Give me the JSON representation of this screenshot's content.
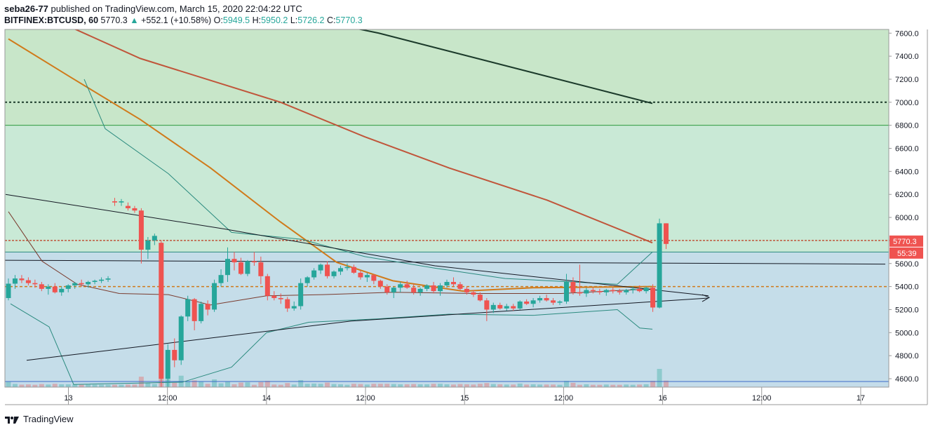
{
  "header": {
    "author": "seba26-77",
    "published": "published on TradingView.com, March 15, 2020 22:04:22 UTC",
    "symbol": "BITFINEX:BTCUSD, 60",
    "last": "5770.3",
    "change_arrow": "▲",
    "change": "+552.1 (+10.58%)",
    "o_label": "O:",
    "o_value": "5949.5",
    "h_label": "H:",
    "h_value": "5950.2",
    "l_label": "L:",
    "l_value": "5726.2",
    "c_label": "C:",
    "c_value": "5770.3"
  },
  "price_tag": "5770.3",
  "countdown_tag": "55:39",
  "brand": "TradingView",
  "colors": {
    "up": "#26a69a",
    "down": "#ef5350",
    "price_tag": "#ef5350",
    "zone_green": "#c8e6c9",
    "zone_blue": "#c5dde9",
    "sma_long": "#1b3a2a",
    "ema_red": "#c0553a",
    "ema_orange": "#d07a1a",
    "bb": "#2a8a7e"
  },
  "chart_data": {
    "type": "candlestick",
    "y_ticks": [
      4600,
      4800,
      5000,
      5200,
      5400,
      5600,
      5800,
      6000,
      6200,
      6400,
      6600,
      6800,
      7000,
      7200,
      7400,
      7600
    ],
    "y_tick_labels": [
      "4600.0",
      "4800.0",
      "5000.0",
      "5200.0",
      "5400.0",
      "5600.0",
      "5800.0",
      "6000.0",
      "6200.0",
      "6400.0",
      "6600.0",
      "6800.0",
      "7000.0",
      "7200.0",
      "7400.0",
      "7600.0"
    ],
    "x_ticks": [
      {
        "label": "13",
        "hour": 17
      },
      {
        "label": "12:00",
        "hour": 29
      },
      {
        "label": "14",
        "hour": 41
      },
      {
        "label": "12:00",
        "hour": 53
      },
      {
        "label": "15",
        "hour": 65
      },
      {
        "label": "12:00",
        "hour": 77
      },
      {
        "label": "16",
        "hour": 89
      },
      {
        "label": "12:00",
        "hour": 101
      },
      {
        "label": "17",
        "hour": 113
      }
    ],
    "levels": [
      7000,
      6800,
      5800,
      5700,
      5600,
      5400
    ],
    "candles": [
      [
        5300,
        5470,
        5280,
        5425
      ],
      [
        5425,
        5500,
        5380,
        5470
      ],
      [
        5470,
        5500,
        5430,
        5455
      ],
      [
        5455,
        5480,
        5410,
        5430
      ],
      [
        5430,
        5460,
        5390,
        5420
      ],
      [
        5420,
        5440,
        5360,
        5380
      ],
      [
        5380,
        5420,
        5330,
        5400
      ],
      [
        5400,
        5430,
        5340,
        5350
      ],
      [
        5350,
        5400,
        5320,
        5380
      ],
      [
        5380,
        5420,
        5350,
        5410
      ],
      [
        5410,
        5440,
        5380,
        5430
      ],
      [
        5430,
        5460,
        5400,
        5420
      ],
      [
        5420,
        5450,
        5390,
        5440
      ],
      [
        5440,
        5460,
        5420,
        5450
      ],
      [
        5450,
        5480,
        5430,
        5460
      ],
      [
        5460,
        5490,
        5440,
        5470
      ],
      [
        6140,
        6170,
        6100,
        6130
      ],
      [
        6130,
        6160,
        6100,
        6140
      ],
      [
        6100,
        6130,
        6060,
        6080
      ],
      [
        6080,
        6100,
        6040,
        6060
      ],
      [
        6060,
        6080,
        5600,
        5720
      ],
      [
        5720,
        5830,
        5640,
        5800
      ],
      [
        5800,
        5860,
        5760,
        5840
      ],
      [
        5780,
        5800,
        4500,
        4600
      ],
      [
        4600,
        4900,
        4500,
        4850
      ],
      [
        4850,
        4950,
        4700,
        4760
      ],
      [
        4760,
        5150,
        4720,
        5140
      ],
      [
        5140,
        5320,
        5100,
        5290
      ],
      [
        5290,
        5300,
        5020,
        5100
      ],
      [
        5100,
        5270,
        5080,
        5250
      ],
      [
        5250,
        5280,
        5150,
        5200
      ],
      [
        5200,
        5460,
        5180,
        5430
      ],
      [
        5430,
        5550,
        5400,
        5500
      ],
      [
        5500,
        5740,
        5440,
        5640
      ],
      [
        5640,
        5700,
        5540,
        5610
      ],
      [
        5610,
        5650,
        5500,
        5510
      ],
      [
        5510,
        5630,
        5490,
        5620
      ],
      [
        5620,
        5700,
        5580,
        5610
      ],
      [
        5610,
        5660,
        5420,
        5490
      ],
      [
        5490,
        5510,
        5280,
        5320
      ],
      [
        5320,
        5360,
        5280,
        5300
      ],
      [
        5300,
        5340,
        5250,
        5290
      ],
      [
        5290,
        5310,
        5180,
        5210
      ],
      [
        5210,
        5270,
        5190,
        5230
      ],
      [
        5230,
        5470,
        5200,
        5430
      ],
      [
        5430,
        5490,
        5400,
        5480
      ],
      [
        5480,
        5560,
        5460,
        5540
      ],
      [
        5540,
        5600,
        5510,
        5590
      ],
      [
        5590,
        5620,
        5470,
        5490
      ],
      [
        5490,
        5540,
        5470,
        5530
      ],
      [
        5530,
        5580,
        5500,
        5560
      ],
      [
        5560,
        5600,
        5540,
        5570
      ],
      [
        5570,
        5590,
        5510,
        5520
      ],
      [
        5520,
        5540,
        5460,
        5480
      ],
      [
        5480,
        5520,
        5440,
        5500
      ],
      [
        5500,
        5510,
        5420,
        5450
      ],
      [
        5450,
        5460,
        5380,
        5400
      ],
      [
        5400,
        5420,
        5330,
        5350
      ],
      [
        5350,
        5400,
        5300,
        5390
      ],
      [
        5390,
        5440,
        5350,
        5420
      ],
      [
        5420,
        5450,
        5380,
        5390
      ],
      [
        5390,
        5420,
        5330,
        5350
      ],
      [
        5350,
        5390,
        5320,
        5380
      ],
      [
        5380,
        5420,
        5360,
        5410
      ],
      [
        5410,
        5440,
        5340,
        5360
      ],
      [
        5360,
        5430,
        5320,
        5410
      ],
      [
        5410,
        5460,
        5390,
        5440
      ],
      [
        5440,
        5480,
        5400,
        5420
      ],
      [
        5420,
        5440,
        5370,
        5380
      ],
      [
        5380,
        5400,
        5330,
        5350
      ],
      [
        5350,
        5370,
        5310,
        5330
      ],
      [
        5330,
        5350,
        5270,
        5280
      ],
      [
        5280,
        5300,
        5100,
        5200
      ],
      [
        5200,
        5260,
        5170,
        5240
      ],
      [
        5240,
        5260,
        5200,
        5210
      ],
      [
        5210,
        5250,
        5190,
        5230
      ],
      [
        5230,
        5250,
        5190,
        5210
      ],
      [
        5210,
        5280,
        5200,
        5270
      ],
      [
        5270,
        5290,
        5240,
        5250
      ],
      [
        5250,
        5300,
        5220,
        5280
      ],
      [
        5280,
        5320,
        5260,
        5300
      ],
      [
        5300,
        5330,
        5270,
        5280
      ],
      [
        5280,
        5300,
        5240,
        5260
      ],
      [
        5260,
        5280,
        5240,
        5270
      ],
      [
        5270,
        5510,
        5250,
        5440
      ],
      [
        5440,
        5480,
        5330,
        5350
      ],
      [
        5350,
        5590,
        5320,
        5340
      ],
      [
        5340,
        5390,
        5310,
        5370
      ],
      [
        5370,
        5390,
        5340,
        5360
      ],
      [
        5360,
        5380,
        5330,
        5350
      ],
      [
        5350,
        5380,
        5320,
        5370
      ],
      [
        5370,
        5390,
        5340,
        5360
      ],
      [
        5360,
        5380,
        5330,
        5350
      ],
      [
        5350,
        5380,
        5330,
        5370
      ],
      [
        5370,
        5400,
        5340,
        5380
      ],
      [
        5380,
        5410,
        5350,
        5360
      ],
      [
        5360,
        5400,
        5340,
        5390
      ],
      [
        5390,
        5420,
        5180,
        5218
      ],
      [
        5218,
        5990,
        5210,
        5949
      ],
      [
        5949,
        5950,
        5726,
        5770
      ]
    ]
  }
}
